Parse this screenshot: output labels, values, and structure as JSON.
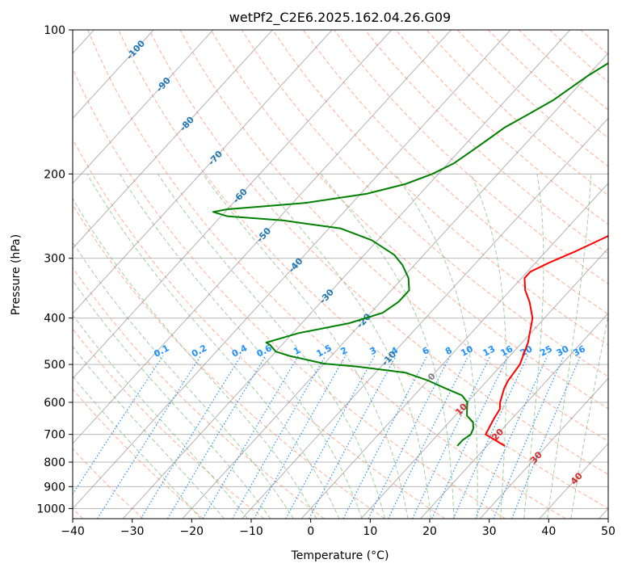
{
  "chart_data": {
    "type": "skewt",
    "title": "wetPf2_C2E6.2025.162.04.26.G09",
    "xlabel": "Temperature (°C)",
    "ylabel": "Pressure (hPa)",
    "xlim": [
      -40,
      50
    ],
    "ylim": [
      1050,
      100
    ],
    "yscale": "log",
    "grid": true,
    "x_ticks": [
      "−40",
      "−30",
      "−20",
      "−10",
      "0",
      "10",
      "20",
      "30",
      "40",
      "50"
    ],
    "x_tick_values": [
      -40,
      -30,
      -20,
      -10,
      0,
      10,
      20,
      30,
      40,
      50
    ],
    "y_ticks": [
      "100",
      "200",
      "300",
      "400",
      "500",
      "600",
      "700",
      "800",
      "900",
      "1000"
    ],
    "y_tick_values": [
      100,
      200,
      300,
      400,
      500,
      600,
      700,
      800,
      900,
      1000
    ],
    "colors": {
      "temperature": "#ff0000",
      "dewpoint": "#008000",
      "dry_adiabat": "#ff8c69",
      "moist_adiabat": "#7fbf7f",
      "mixing_ratio": "#1e90ff",
      "isotherm": "#808080",
      "neg_isotherm_label": "#1f77b4",
      "pos_isotherm_label": "#d62728",
      "zero_isotherm_label": "#808080"
    },
    "series": [
      {
        "key": "temperature",
        "points": [
          [
            740,
            23
          ],
          [
            700,
            18
          ],
          [
            650,
            17
          ],
          [
            620,
            16.5
          ],
          [
            600,
            15.5
          ],
          [
            560,
            14
          ],
          [
            540,
            13.5
          ],
          [
            500,
            13
          ],
          [
            450,
            11
          ],
          [
            400,
            8
          ],
          [
            370,
            5
          ],
          [
            350,
            2.5
          ],
          [
            330,
            0.5
          ],
          [
            320,
            0.5
          ],
          [
            305,
            2.5
          ],
          [
            290,
            5
          ],
          [
            270,
            8
          ],
          [
            250,
            10
          ],
          [
            230,
            12
          ],
          [
            200,
            14
          ],
          [
            180,
            15
          ],
          [
            160,
            18
          ],
          [
            150,
            19
          ],
          [
            140,
            22
          ],
          [
            130,
            25
          ],
          [
            120,
            27
          ],
          [
            110,
            29
          ],
          [
            100,
            32
          ]
        ]
      },
      {
        "key": "dewpoint",
        "points": [
          [
            740,
            15
          ],
          [
            720,
            15
          ],
          [
            700,
            15.5
          ],
          [
            680,
            15
          ],
          [
            660,
            14
          ],
          [
            640,
            12
          ],
          [
            620,
            11
          ],
          [
            600,
            10
          ],
          [
            580,
            8
          ],
          [
            560,
            4
          ],
          [
            540,
            0
          ],
          [
            520,
            -5
          ],
          [
            505,
            -14
          ],
          [
            498,
            -20
          ],
          [
            480,
            -27
          ],
          [
            470,
            -30
          ],
          [
            455,
            -32
          ],
          [
            450,
            -33
          ],
          [
            440,
            -31
          ],
          [
            430,
            -29
          ],
          [
            410,
            -22
          ],
          [
            390,
            -18
          ],
          [
            370,
            -17
          ],
          [
            350,
            -17
          ],
          [
            330,
            -19
          ],
          [
            310,
            -22
          ],
          [
            295,
            -25
          ],
          [
            275,
            -31
          ],
          [
            260,
            -38
          ],
          [
            250,
            -49
          ],
          [
            245,
            -59
          ],
          [
            240,
            -62
          ],
          [
            237,
            -60
          ],
          [
            230,
            -48
          ],
          [
            220,
            -39
          ],
          [
            210,
            -34
          ],
          [
            200,
            -31
          ],
          [
            190,
            -29
          ],
          [
            180,
            -28
          ],
          [
            170,
            -27
          ],
          [
            160,
            -26
          ],
          [
            150,
            -24
          ],
          [
            140,
            -22
          ],
          [
            125,
            -20
          ],
          [
            115,
            -18
          ],
          [
            100,
            -13
          ]
        ]
      }
    ],
    "isotherm_labels": [
      {
        "text": "-100",
        "t": -100,
        "p": 110
      },
      {
        "text": "-90",
        "t": -90,
        "p": 130
      },
      {
        "text": "-80",
        "t": -80,
        "p": 157
      },
      {
        "text": "-70",
        "t": -70,
        "p": 185
      },
      {
        "text": "-60",
        "t": -60,
        "p": 222
      },
      {
        "text": "-50",
        "t": -50,
        "p": 268
      },
      {
        "text": "-40",
        "t": -40,
        "p": 310
      },
      {
        "text": "-30",
        "t": -30,
        "p": 360
      },
      {
        "text": "-20",
        "t": -20,
        "p": 405
      },
      {
        "text": "-10",
        "t": -10,
        "p": 485
      },
      {
        "text": "0",
        "t": 0,
        "p": 530
      },
      {
        "text": "10",
        "t": 10,
        "p": 620
      },
      {
        "text": "20",
        "t": 20,
        "p": 700
      },
      {
        "text": "30",
        "t": 30,
        "p": 782
      },
      {
        "text": "40",
        "t": 40,
        "p": 865
      }
    ],
    "mixing_ratio_labels": [
      "0.1",
      "0.2",
      "0.4",
      "0.6",
      "1",
      "1.5",
      "2",
      "3",
      "4",
      "6",
      "8",
      "10",
      "13",
      "16",
      "20",
      "25",
      "30",
      "36"
    ],
    "mixing_ratio_values": [
      0.1,
      0.2,
      0.4,
      0.6,
      1,
      1.5,
      2,
      3,
      4,
      6,
      8,
      10,
      13,
      16,
      20,
      25,
      30,
      36
    ],
    "mixing_ratio_label_pressure": 480
  }
}
